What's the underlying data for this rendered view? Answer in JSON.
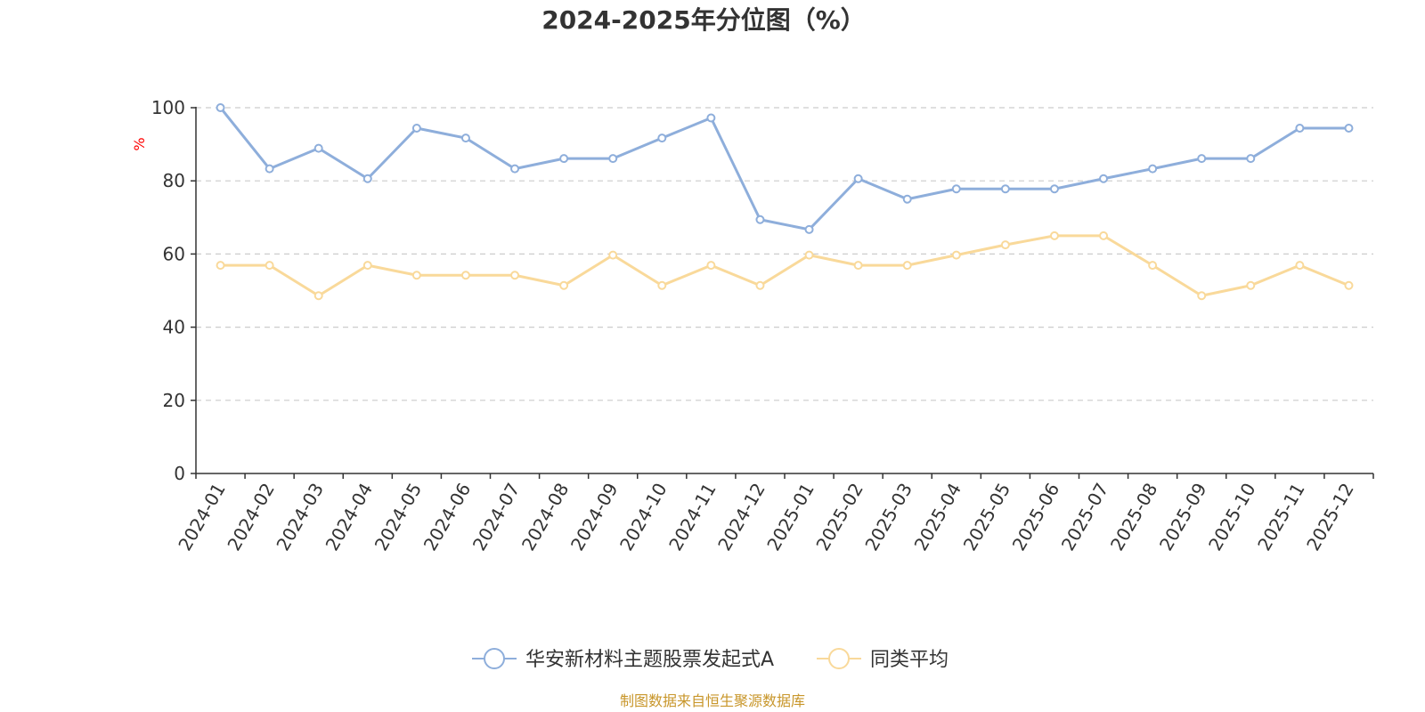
{
  "chart_data": {
    "type": "line",
    "title": "2024-2025年分位图（%）",
    "xlabel": "",
    "ylabel": "%",
    "ylim": [
      0,
      100
    ],
    "yticks": [
      0,
      20,
      40,
      60,
      80,
      100
    ],
    "grid": true,
    "legend_position": "bottom-center",
    "categories": [
      "2024-01",
      "2024-02",
      "2024-03",
      "2024-04",
      "2024-05",
      "2024-06",
      "2024-07",
      "2024-08",
      "2024-09",
      "2024-10",
      "2024-11",
      "2024-12",
      "2025-01",
      "2025-02",
      "2025-03",
      "2025-04",
      "2025-05",
      "2025-06",
      "2025-07",
      "2025-08",
      "2025-09",
      "2025-10",
      "2025-11",
      "2025-12"
    ],
    "series": [
      {
        "name": "华安新材料主题股票发起式A",
        "color": "#8eaedb",
        "values": [
          100,
          83.3,
          88.9,
          80.6,
          94.4,
          91.7,
          83.3,
          86.1,
          86.1,
          91.7,
          97.2,
          69.4,
          66.7,
          80.6,
          75.0,
          77.8,
          77.8,
          77.8,
          80.6,
          83.3,
          86.1,
          86.1,
          94.4,
          94.4
        ]
      },
      {
        "name": "同类平均",
        "color": "#f9d99a",
        "values": [
          56.9,
          56.9,
          48.6,
          56.9,
          54.2,
          54.2,
          54.2,
          51.4,
          59.7,
          51.4,
          56.9,
          51.4,
          59.7,
          56.9,
          56.9,
          59.7,
          62.5,
          65.0,
          65.0,
          56.9,
          48.6,
          51.4,
          56.9,
          51.4
        ]
      }
    ]
  },
  "source_text": "制图数据来自恒生聚源数据库",
  "colors": {
    "axis": "#333333",
    "grid": "#cccccc",
    "ylabel": "#ff0000",
    "source": "#c8962a"
  }
}
